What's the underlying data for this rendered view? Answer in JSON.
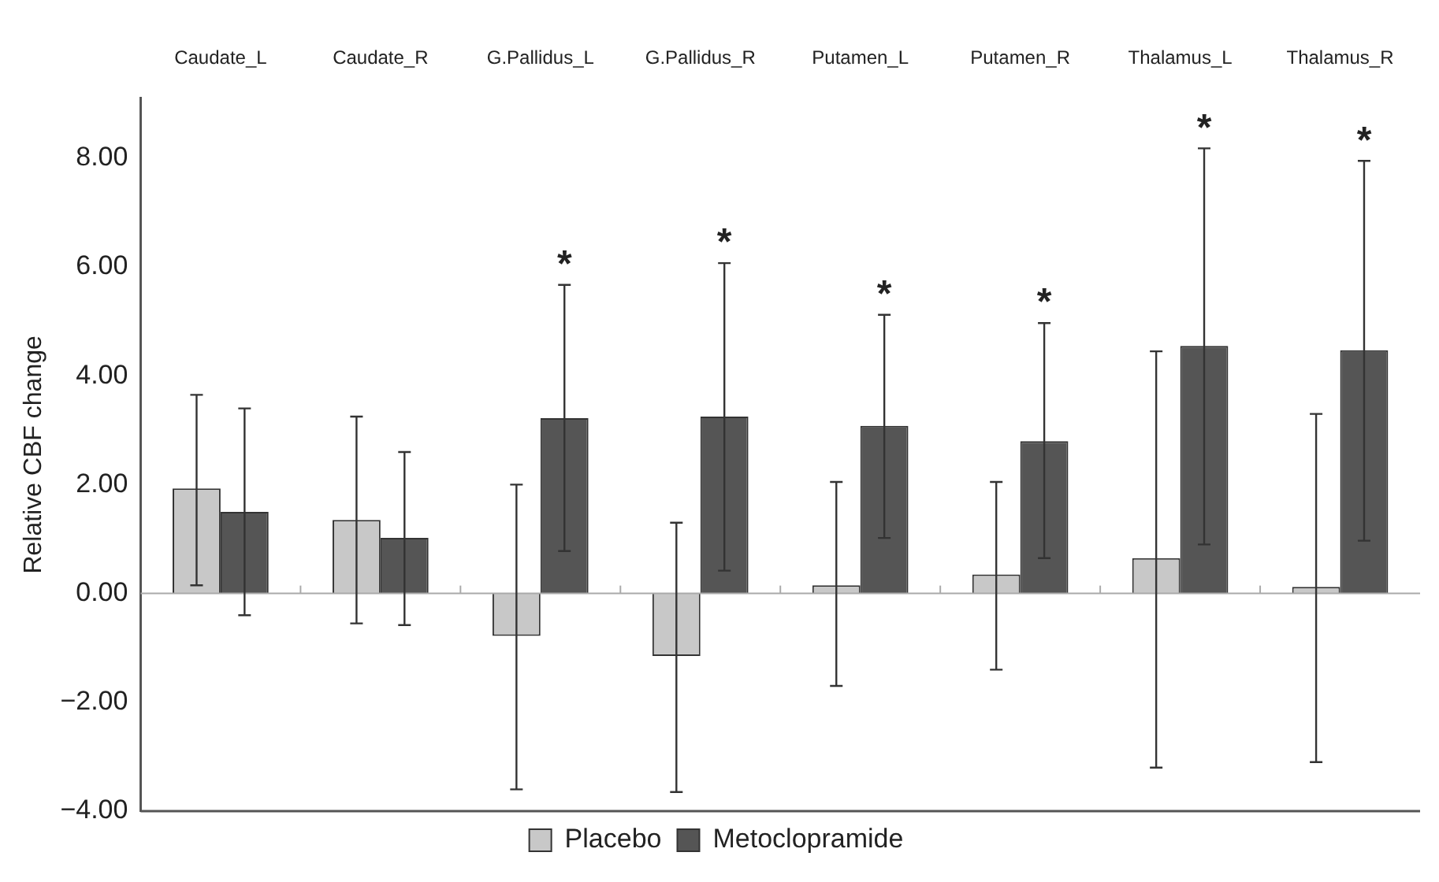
{
  "chart_data": {
    "type": "bar",
    "ylabel": "Relative CBF change",
    "categories": [
      "Caudate_L",
      "Caudate_R",
      "G.Pallidus_L",
      "G.Pallidus_R",
      "Putamen_L",
      "Putamen_R",
      "Thalamus_L",
      "Thalamus_R"
    ],
    "series": [
      {
        "name": "Placebo",
        "color": "#c8c8c8",
        "values": [
          1.93,
          1.35,
          -0.78,
          -1.15,
          0.15,
          0.35,
          0.65,
          0.12
        ],
        "errors": [
          [
            0.15,
            3.65
          ],
          [
            -0.55,
            3.25
          ],
          [
            -3.6,
            2.0
          ],
          [
            -3.65,
            1.3
          ],
          [
            -1.7,
            2.05
          ],
          [
            -1.4,
            2.05
          ],
          [
            -3.2,
            4.45
          ],
          [
            -3.1,
            3.3
          ]
        ]
      },
      {
        "name": "Metoclopramide",
        "color": "#555555",
        "values": [
          1.5,
          1.02,
          3.22,
          3.25,
          3.08,
          2.8,
          4.55,
          4.47
        ],
        "errors": [
          [
            -0.4,
            3.4
          ],
          [
            -0.58,
            2.6
          ],
          [
            0.78,
            5.67
          ],
          [
            0.42,
            6.07
          ],
          [
            1.02,
            5.12
          ],
          [
            0.65,
            4.97
          ],
          [
            0.9,
            8.18
          ],
          [
            0.97,
            7.95
          ]
        ]
      }
    ],
    "ylim": [
      -4,
      9.1
    ],
    "yticks": [
      {
        "value": -4,
        "label": "−4.00"
      },
      {
        "value": -2,
        "label": "−2.00"
      },
      {
        "value": 0,
        "label": "0.00"
      },
      {
        "value": 2,
        "label": "2.00"
      },
      {
        "value": 4,
        "label": "4.00"
      },
      {
        "value": 6,
        "label": "6.00"
      },
      {
        "value": 8,
        "label": "8.00"
      }
    ],
    "ref_lines": [
      {
        "axis": "y",
        "value": 0,
        "color": "#aaaaaa"
      }
    ],
    "annotations": [
      "*",
      "*",
      "*",
      "*",
      "*",
      "*"
    ],
    "legend": "bottom",
    "grid": false
  }
}
